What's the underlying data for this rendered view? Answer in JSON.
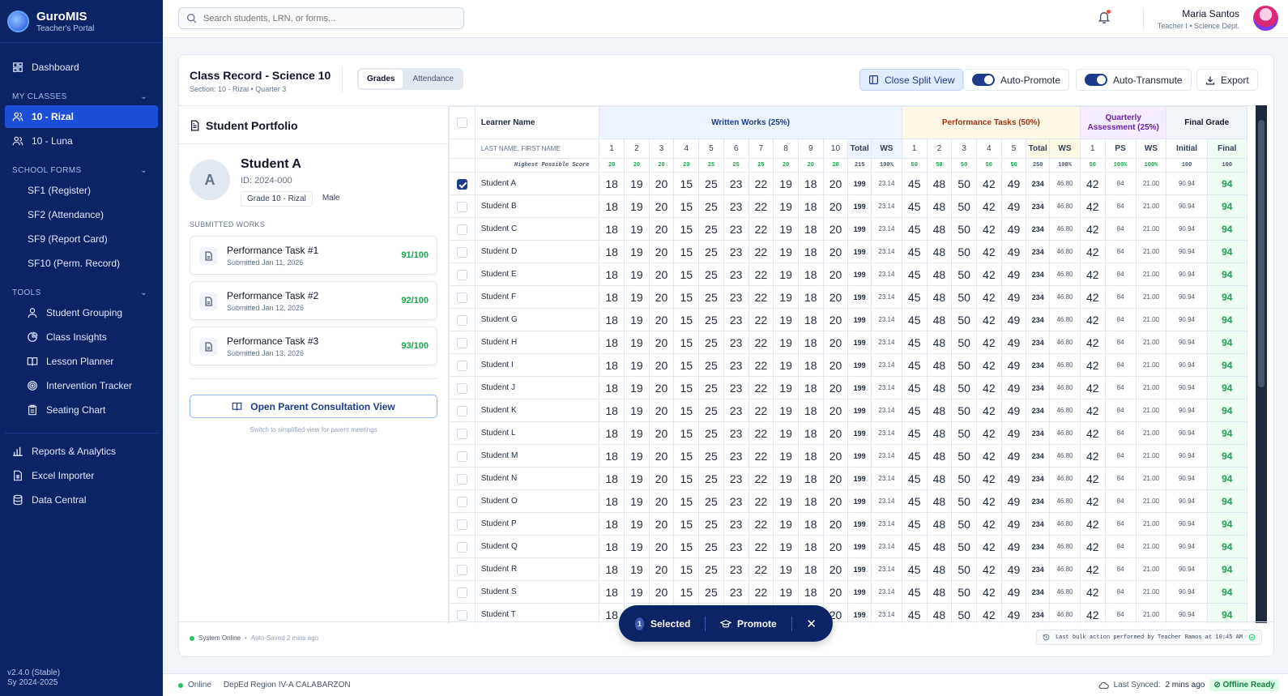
{
  "app": {
    "name": "GuroMIS",
    "subtitle": "Teacher's Portal",
    "version": "v2.4.0 (Stable)",
    "school_year": "Sy 2024-2025"
  },
  "sidebar": {
    "dashboard": "Dashboard",
    "my_classes_header": "MY CLASSES",
    "classes": [
      "10 - Rizal",
      "10 - Luna"
    ],
    "forms_header": "SCHOOL FORMS",
    "forms": [
      "SF1 (Register)",
      "SF2 (Attendance)",
      "SF9 (Report Card)",
      "SF10 (Perm. Record)"
    ],
    "tools_header": "TOOLS",
    "tools": [
      "Student Grouping",
      "Class Insights",
      "Lesson Planner",
      "Intervention Tracker",
      "Seating Chart"
    ],
    "bottom": [
      "Reports & Analytics",
      "Excel Importer",
      "Data Central"
    ]
  },
  "topbar": {
    "search_placeholder": "Search students, LRN, or forms...",
    "user_name": "Maria Santos",
    "user_role": "Teacher I • Science Dept."
  },
  "record": {
    "title": "Class Record - Science 10",
    "subtitle": "Section: 10 - Rizal • Quarter 3",
    "tabs": [
      "Grades",
      "Attendance"
    ],
    "close_split": "Close Split View",
    "auto_promote": "Auto-Promote",
    "auto_transmute": "Auto-Transmute",
    "export": "Export"
  },
  "portfolio": {
    "title": "Student Portfolio",
    "initial": "A",
    "name": "Student A",
    "id": "ID: 2024-000",
    "grade": "Grade 10 - Rizal",
    "sex": "Male",
    "works_label": "SUBMITTED WORKS",
    "works": [
      {
        "title": "Performance Task #1",
        "date": "Submitted Jan 11, 2026",
        "score": "91/100"
      },
      {
        "title": "Performance Task #2",
        "date": "Submitted Jan 12, 2026",
        "score": "92/100"
      },
      {
        "title": "Performance Task #3",
        "date": "Submitted Jan 13, 2026",
        "score": "93/100"
      }
    ],
    "parent_button": "Open Parent Consultation View",
    "parent_hint": "Switch to simplified view for parent meetings"
  },
  "grid": {
    "headers": {
      "learner": "Learner Name",
      "ww": "Written Works (25%)",
      "pt": "Performance Tasks (50%)",
      "qa": "Quarterly Assessment (25%)",
      "fg": "Final Grade"
    },
    "sub": {
      "name": "LAST NAME, FIRST NAME",
      "ww": [
        "1",
        "2",
        "3",
        "4",
        "5",
        "6",
        "7",
        "8",
        "9",
        "10",
        "Total",
        "WS"
      ],
      "pt": [
        "1",
        "2",
        "3",
        "4",
        "5",
        "Total",
        "WS"
      ],
      "qa": [
        "1",
        "PS",
        "WS"
      ],
      "fg": [
        "Initial",
        "Final"
      ]
    },
    "hps_label": "Highest Possible Score",
    "hps": {
      "ww": [
        "20",
        "20",
        "20",
        "20",
        "25",
        "25",
        "25",
        "20",
        "20",
        "20",
        "215",
        "100%"
      ],
      "pt": [
        "50",
        "50",
        "50",
        "50",
        "50",
        "250",
        "100%"
      ],
      "qa": [
        "50",
        "100%",
        "100%"
      ],
      "fg": [
        "100",
        "100"
      ]
    },
    "students": [
      "Student A",
      "Student B",
      "Student C",
      "Student D",
      "Student E",
      "Student F",
      "Student G",
      "Student H",
      "Student I",
      "Student J",
      "Student K",
      "Student L",
      "Student M",
      "Student N",
      "Student O",
      "Student P",
      "Student Q",
      "Student R",
      "Student S",
      "Student T"
    ],
    "selected": [
      true,
      false,
      false,
      false,
      false,
      false,
      false,
      false,
      false,
      false,
      false,
      false,
      false,
      false,
      false,
      false,
      false,
      false,
      false,
      false
    ],
    "row_values": {
      "ww": [
        "18",
        "19",
        "20",
        "15",
        "25",
        "23",
        "22",
        "19",
        "18",
        "20"
      ],
      "ww_total": "199",
      "ww_ws": "23.14",
      "pt": [
        "45",
        "48",
        "50",
        "42",
        "49"
      ],
      "pt_total": "234",
      "pt_ws": "46.80",
      "qa": "42",
      "qa_ps": "84",
      "qa_ws": "21.00",
      "initial": "90.94",
      "final": "94"
    }
  },
  "footer": {
    "online": "System Online",
    "saved": "Auto-Saved 2 mins ago",
    "last_action": "Last bulk action performed by Teacher Ramos at 10:45 AM"
  },
  "bulk": {
    "count": "1",
    "selected": "Selected",
    "promote": "Promote"
  },
  "status": {
    "online": "Online",
    "region": "DepEd Region IV-A CALABARZON",
    "last_synced_label": "Last Synced:",
    "last_synced": "2 mins ago",
    "offline": "Offline Ready"
  }
}
